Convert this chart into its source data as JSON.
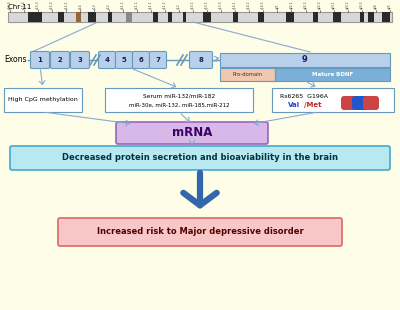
{
  "background_color": "#fdfde8",
  "chromosome_label": "Chr 11",
  "exon_color": "#b8d0ea",
  "exon_border": "#6699bb",
  "exon9_prodomain_color": "#f0c8b0",
  "exon9_mature_color": "#7ab0d8",
  "box_left_text": "High CpG methylation",
  "box_mid_line1": "Serum miR-132/miR-182",
  "box_mid_line2": "miR-30e, miR-132, miR-185,miR-212",
  "box_right_text1": "Rs6265  G196A",
  "box_right_val": "Val",
  "box_right_met": "/Met",
  "mrna_text": "mRNA",
  "mrna_color": "#d8b8e8",
  "mrna_border": "#9966bb",
  "decreased_text": "Decreased protein secretion and bioaviability in the brain",
  "decreased_color": "#b8e8f0",
  "decreased_border": "#44aacc",
  "increased_text": "Increased risk to Major depressive disorder",
  "increased_color": "#f8c8c8",
  "increased_border": "#dd6666",
  "arrow_color": "#88aad0",
  "arrow_color_dark": "#3366aa",
  "box_border": "#6699bb",
  "box_fill": "#ffffff",
  "chrom_fill": "#d8d8d8",
  "chrom_border": "#999999",
  "line_color": "#6699bb"
}
